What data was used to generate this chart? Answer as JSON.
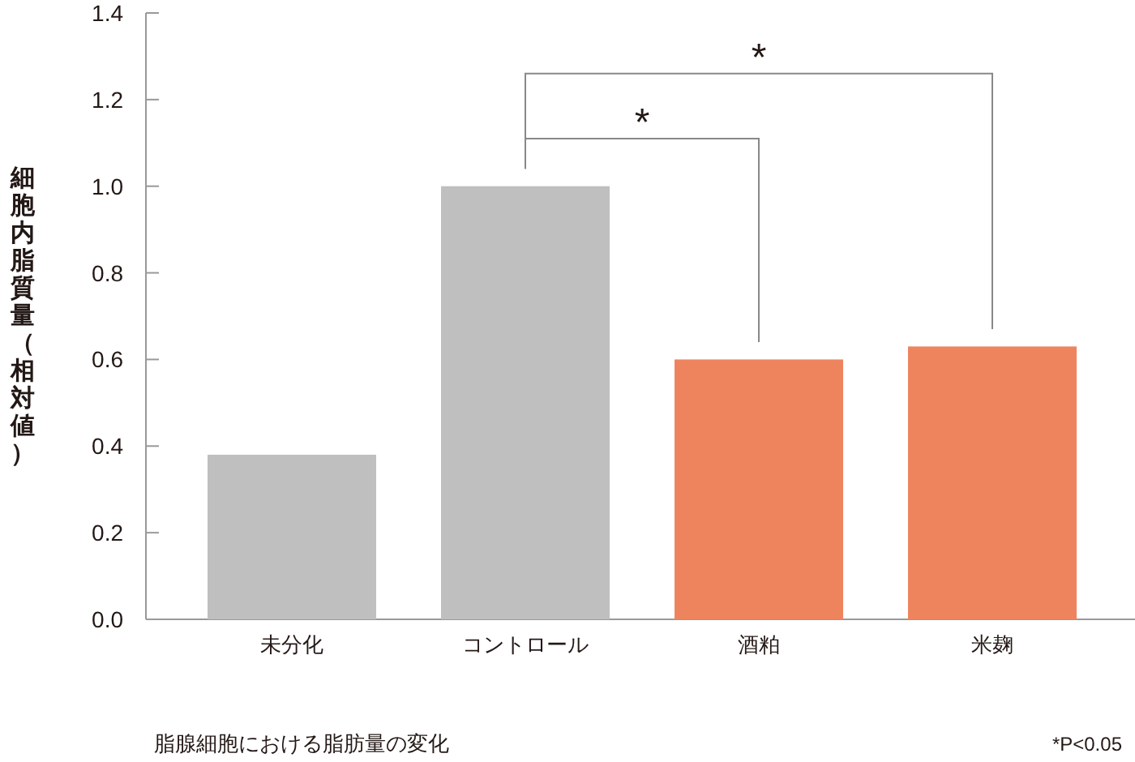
{
  "chart_data": {
    "type": "bar",
    "title": "脂腺細胞における脂肪量の変化",
    "ylabel": "細胞内脂質量（相対値）",
    "categories": [
      "未分化",
      "コントロール",
      "酒粕",
      "米麹"
    ],
    "values": [
      0.38,
      1.0,
      0.6,
      0.63
    ],
    "colors": [
      "#bebfbe",
      "#bebfbe",
      "#ee845d",
      "#ee845d"
    ],
    "ylim": [
      0,
      1.4
    ],
    "yticks": [
      {
        "value": 0,
        "label": "0.0"
      },
      {
        "value": 0.2,
        "label": "0.2"
      },
      {
        "value": 0.4,
        "label": "0.4"
      },
      {
        "value": 0.6,
        "label": "0.6"
      },
      {
        "value": 0.8,
        "label": "0.8"
      },
      {
        "value": 1,
        "label": "1.0"
      },
      {
        "value": 1.2,
        "label": "1.2"
      },
      {
        "value": 1.4,
        "label": "1.4"
      }
    ],
    "annotations": [
      "*",
      "*",
      "*P<0.05"
    ]
  }
}
